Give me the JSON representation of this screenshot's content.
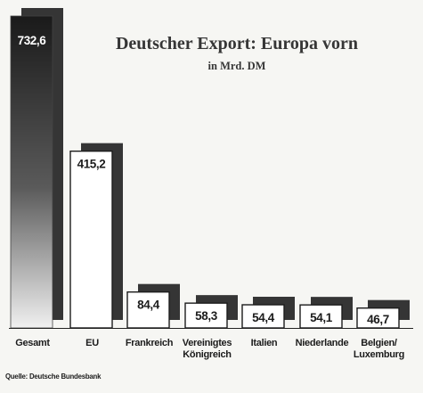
{
  "chart_data": {
    "type": "bar",
    "title": "Deutscher Export: Europa vorn",
    "subtitle": "in Mrd. DM",
    "categories": [
      [
        "Gesamt"
      ],
      [
        "EU"
      ],
      [
        "Frankreich"
      ],
      [
        "Vereinigtes",
        "Königreich"
      ],
      [
        "Italien"
      ],
      [
        "Niederlande"
      ],
      [
        "Belgien/",
        "Luxemburg"
      ]
    ],
    "values": [
      732.6,
      415.2,
      84.4,
      58.3,
      54.4,
      54.1,
      46.7
    ],
    "value_labels": [
      "732,6",
      "415,2",
      "84,4",
      "58,3",
      "54,4",
      "54,1",
      "46,7"
    ],
    "grid": false,
    "legend": "none"
  },
  "source": "Quelle: Deutsche Bundesbank",
  "colors": {
    "shadow": "#353535",
    "bar_face": "#ffffff",
    "ink": "#1c1c1c",
    "highlight_top": "#1a1a1a",
    "highlight_bottom": "#f0f0f0",
    "highlight_label": "#ffffff"
  }
}
